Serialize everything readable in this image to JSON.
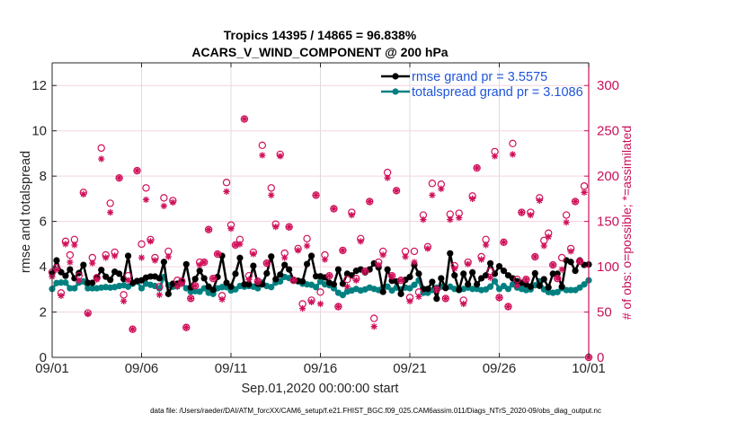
{
  "chart_data": {
    "type": "line",
    "title": [
      "Tropics 14395 / 14865 = 96.838%",
      "ACARS_V_WIND_COMPONENT @ 200 hPa"
    ],
    "xlabel": "Sep.01,2020 00:00:00 start",
    "ylabel": "rmse and totalspread",
    "y2label": "# of obs: o=possible; *=assimilated",
    "xlim": [
      0,
      30
    ],
    "x_units": "days since Sep.01,2020 00:00:00",
    "x_step_days": 0.25,
    "x_tick_days": [
      0,
      5,
      10,
      15,
      20,
      25,
      30
    ],
    "x_tick_labels": [
      "09/01",
      "09/06",
      "09/11",
      "09/16",
      "09/21",
      "09/26",
      "10/01"
    ],
    "ylim": [
      0,
      13
    ],
    "yticks": [
      0,
      2,
      4,
      6,
      8,
      10,
      12
    ],
    "ytick_labels": [
      "0",
      "2",
      "4",
      "6",
      "8",
      "10",
      "12"
    ],
    "y2lim": [
      0,
      325
    ],
    "y2ticks": [
      0,
      50,
      100,
      150,
      200,
      250,
      300
    ],
    "y2tick_labels": [
      "0",
      "50",
      "100",
      "150",
      "200",
      "250",
      "300"
    ],
    "grid": true,
    "colors": {
      "rmse": "#000000",
      "totalspread": "#008080",
      "obs": "#d0105a",
      "legend_text": "#1f55d8",
      "right_axis": "#c8105a"
    },
    "legend": {
      "placement": "top-right",
      "entries": [
        {
          "series": "rmse",
          "label": "rmse grand pr = 3.5575"
        },
        {
          "series": "totalspread",
          "label": "totalspread grand pr = 3.1086"
        }
      ]
    },
    "series": [
      {
        "name": "rmse",
        "axis": "left",
        "marker": "filled-circle",
        "values": [
          3.7,
          4.28,
          3.76,
          3.6,
          3.88,
          3.49,
          3.72,
          4.08,
          3.29,
          3.29,
          3.49,
          3.86,
          3.56,
          3.42,
          3.78,
          3.69,
          3.46,
          4.48,
          3.29,
          3.37,
          3.4,
          3.52,
          3.57,
          3.57,
          3.49,
          4.21,
          2.8,
          3.25,
          3.25,
          3.32,
          4.11,
          3.09,
          3.46,
          3.82,
          3.49,
          3.12,
          2.98,
          3.55,
          4.48,
          3.29,
          3.12,
          3.69,
          4.39,
          3.22,
          3.22,
          4.04,
          3.25,
          3.22,
          3.71,
          4.45,
          3.45,
          3.65,
          4.08,
          3.88,
          3.42,
          3.38,
          3.35,
          4.12,
          4.48,
          3.58,
          3.58,
          3.53,
          3.29,
          3.22,
          3.88,
          3.25,
          3.69,
          3.62,
          3.82,
          3.88,
          3.75,
          3.88,
          4.15,
          3.97,
          2.89,
          3.88,
          3.38,
          3.35,
          2.8,
          3.42,
          3.55,
          4.08,
          3.69,
          3.02,
          3.02,
          3.33,
          2.59,
          3.49,
          3.06,
          4.59,
          3.62,
          2.98,
          3.69,
          3.22,
          3.75,
          3.22,
          3.49,
          3.62,
          4.15,
          3.69,
          4.02,
          3.82,
          3.62,
          3.49,
          3.36,
          3.29,
          3.22,
          3.12,
          3.71,
          3.16,
          3.45,
          3.09,
          3.69,
          3.69,
          3.12,
          4.28,
          4.21,
          3.82,
          4.28,
          4.08,
          4.1
        ]
      },
      {
        "name": "totalspread",
        "axis": "left",
        "marker": "filled-circle",
        "values": [
          3.02,
          3.28,
          3.3,
          3.3,
          3.05,
          3.05,
          3.3,
          3.35,
          3.05,
          3.05,
          3.05,
          3.08,
          3.1,
          3.08,
          3.1,
          3.15,
          3.18,
          3.12,
          3.25,
          3.35,
          3.05,
          3.25,
          3.2,
          3.15,
          3.05,
          3.55,
          3.18,
          3.12,
          3.15,
          3.28,
          3.05,
          2.9,
          2.92,
          2.9,
          3.05,
          2.85,
          2.8,
          3.05,
          3.1,
          3.1,
          2.95,
          3.0,
          3.15,
          3.12,
          3.15,
          3.12,
          3.05,
          3.3,
          3.15,
          3.1,
          3.3,
          3.35,
          3.55,
          3.5,
          3.4,
          3.35,
          3.25,
          3.22,
          3.2,
          3.1,
          3.35,
          3.22,
          3.18,
          3.05,
          2.85,
          2.75,
          2.9,
          2.95,
          3.02,
          2.95,
          3.0,
          3.08,
          3.02,
          2.97,
          3.08,
          3.12,
          2.95,
          3.08,
          3.0,
          3.08,
          3.05,
          3.2,
          3.4,
          2.85,
          2.85,
          2.97,
          3.08,
          3.12,
          3.08,
          3.12,
          3.02,
          2.97,
          3.02,
          3.08,
          3.02,
          3.02,
          2.97,
          3.0,
          3.12,
          3.36,
          3.02,
          3.15,
          3.02,
          3.22,
          3.08,
          3.02,
          2.97,
          3.0,
          3.18,
          3.36,
          3.0,
          2.88,
          2.85,
          2.88,
          3.05,
          2.97,
          2.97,
          2.97,
          3.08,
          3.22,
          3.4
        ]
      },
      {
        "name": "obs_possible",
        "axis": "right",
        "marker": "o",
        "values": [
          94,
          99,
          71,
          128,
          113,
          130,
          90,
          182,
          49,
          110,
          88,
          231,
          113,
          170,
          116,
          198,
          69,
          90,
          31,
          206,
          125,
          187,
          130,
          110,
          78,
          176,
          117,
          173,
          85,
          84,
          33,
          65,
          79,
          105,
          105,
          141,
          87,
          114,
          68,
          193,
          146,
          124,
          130,
          263,
          90,
          116,
          84,
          234,
          104,
          187,
          147,
          224,
          115,
          144,
          85,
          120,
          59,
          131,
          63,
          179,
          72,
          113,
          90,
          164,
          56,
          118,
          86,
          160,
          87,
          131,
          95,
          172,
          43,
          105,
          117,
          204,
          90,
          184,
          85,
          117,
          66,
          117,
          72,
          157,
          122,
          192,
          75,
          191,
          65,
          158,
          101,
          159,
          63,
          105,
          178,
          209,
          111,
          130,
          95,
          227,
          66,
          127,
          56,
          236,
          86,
          160,
          86,
          160,
          111,
          176,
          129,
          137,
          102,
          87,
          110,
          157,
          120,
          172,
          106,
          189,
          0
        ]
      },
      {
        "name": "obs_assimilated",
        "axis": "right",
        "marker": "*",
        "values": [
          89,
          97,
          68,
          125,
          105,
          124,
          85,
          180,
          48,
          104,
          86,
          219,
          110,
          160,
          112,
          198,
          62,
          85,
          31,
          206,
          110,
          174,
          128,
          107,
          69,
          167,
          111,
          171,
          78,
          81,
          33,
          65,
          79,
          102,
          105,
          141,
          87,
          114,
          64,
          183,
          142,
          124,
          125,
          263,
          86,
          114,
          84,
          223,
          104,
          179,
          144,
          222,
          110,
          144,
          85,
          118,
          54,
          123,
          61,
          179,
          59,
          108,
          90,
          164,
          56,
          118,
          78,
          157,
          85,
          128,
          95,
          172,
          34,
          102,
          113,
          198,
          90,
          184,
          85,
          111,
          62,
          105,
          67,
          152,
          120,
          179,
          75,
          186,
          65,
          152,
          98,
          154,
          59,
          103,
          175,
          209,
          108,
          124,
          88,
          222,
          66,
          127,
          56,
          224,
          79,
          160,
          86,
          157,
          111,
          173,
          123,
          133,
          102,
          87,
          97,
          149,
          117,
          172,
          106,
          182,
          0
        ]
      }
    ]
  },
  "footer": "data file: /Users/raeder/DAI/ATM_forcXX/CAM6_setup/f.e21.FHIST_BGC.f09_025.CAM6assim.011/Diags_NTrS_2020-09/obs_diag_output.nc"
}
